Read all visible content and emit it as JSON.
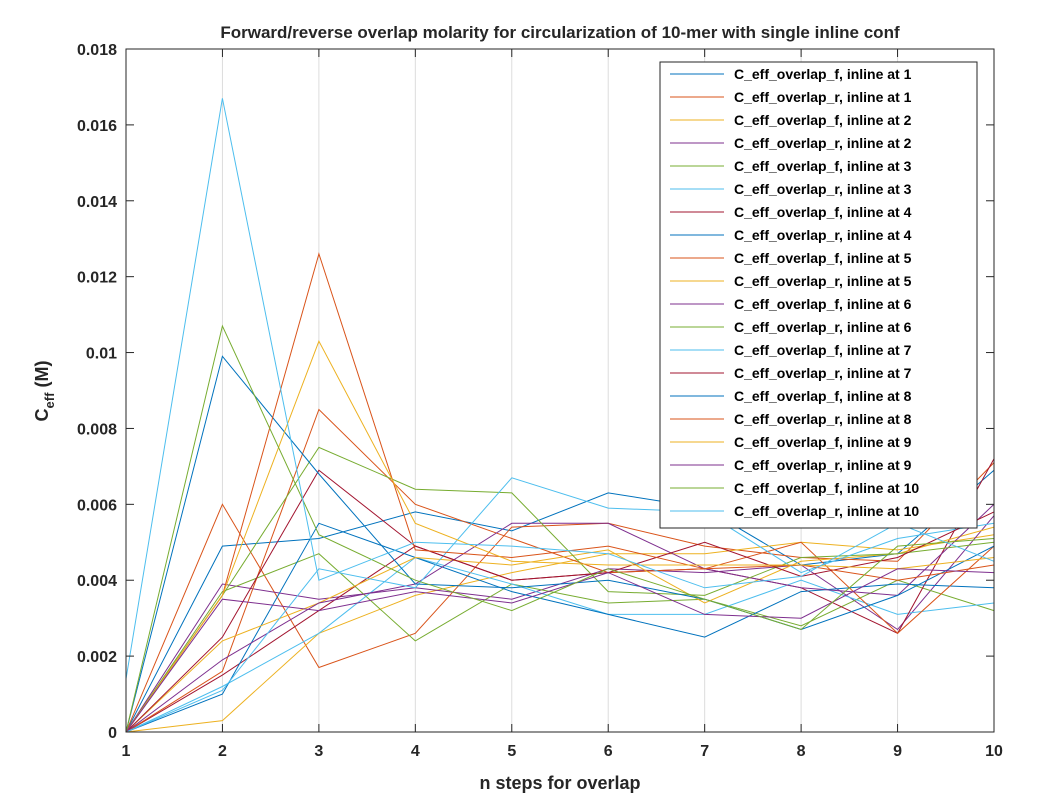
{
  "chart_data": {
    "type": "line",
    "title": "Forward/reverse overlap molarity for circularization of 10-mer with single inline conf",
    "xlabel": "n steps for overlap",
    "ylabel_main": "C",
    "ylabel_sub": "eff",
    "ylabel_unit": " (M)",
    "xlim": [
      1,
      10
    ],
    "ylim": [
      0,
      0.018
    ],
    "xticks": [
      1,
      2,
      3,
      4,
      5,
      6,
      7,
      8,
      9,
      10
    ],
    "yticks": [
      0,
      0.002,
      0.004,
      0.006,
      0.008,
      0.01,
      0.012,
      0.014,
      0.016,
      0.018
    ],
    "ytick_labels": [
      "0",
      "0.002",
      "0.004",
      "0.006",
      "0.008",
      "0.01",
      "0.012",
      "0.014",
      "0.016",
      "0.018"
    ],
    "grid": "vertical",
    "legend_position": "top-right",
    "x": [
      1,
      2,
      3,
      4,
      5,
      6,
      7,
      8,
      9,
      10
    ],
    "series": [
      {
        "name": "C_eff_overlap_f, inline at 1",
        "color": "#0072BD",
        "values": [
          0.0,
          0.0049,
          0.0051,
          0.0058,
          0.0053,
          0.0063,
          0.0059,
          0.0044,
          0.0047,
          0.0069
        ]
      },
      {
        "name": "C_eff_overlap_r, inline at 1",
        "color": "#D95319",
        "values": [
          0.0,
          0.006,
          0.0017,
          0.0026,
          0.0054,
          0.0055,
          0.0049,
          0.0046,
          0.0045,
          0.0071
        ]
      },
      {
        "name": "C_eff_overlap_f, inline at 2",
        "color": "#EDB120",
        "values": [
          0.0,
          0.0003,
          0.0026,
          0.0036,
          0.0042,
          0.0047,
          0.0047,
          0.005,
          0.0048,
          0.0052
        ]
      },
      {
        "name": "C_eff_overlap_r, inline at 2",
        "color": "#7E2F8E",
        "values": [
          0.0,
          0.0039,
          0.0035,
          0.0038,
          0.0035,
          0.0043,
          0.0042,
          0.0044,
          0.0027,
          0.0057
        ]
      },
      {
        "name": "C_eff_overlap_f, inline at 3",
        "color": "#77AC30",
        "values": [
          0.0,
          0.0037,
          0.0047,
          0.0024,
          0.0039,
          0.0034,
          0.0035,
          0.0028,
          0.004,
          0.0032
        ]
      },
      {
        "name": "C_eff_overlap_r, inline at 3",
        "color": "#4DBEEE",
        "values": [
          0.0,
          0.0012,
          0.0026,
          0.0046,
          0.0039,
          0.0031,
          0.0031,
          0.004,
          0.0031,
          0.0034
        ]
      },
      {
        "name": "C_eff_overlap_f, inline at 4",
        "color": "#A2142F",
        "values": [
          0.0,
          0.0015,
          0.0032,
          0.0049,
          0.004,
          0.0042,
          0.0043,
          0.0038,
          0.0026,
          0.0072
        ]
      },
      {
        "name": "C_eff_overlap_r, inline at 4",
        "color": "#0072BD",
        "values": [
          0.0,
          0.001,
          0.0055,
          0.0046,
          0.0037,
          0.0031,
          0.0025,
          0.0037,
          0.0039,
          0.0038
        ]
      },
      {
        "name": "C_eff_overlap_f, inline at 5",
        "color": "#D95319",
        "values": [
          0.0,
          0.0016,
          0.0085,
          0.006,
          0.0051,
          0.0042,
          0.0043,
          0.005,
          0.0026,
          0.0049
        ]
      },
      {
        "name": "C_eff_overlap_r, inline at 5",
        "color": "#EDB120",
        "values": [
          0.0,
          0.0024,
          0.0034,
          0.0046,
          0.0044,
          0.0048,
          0.0034,
          0.0045,
          0.0047,
          0.0054
        ]
      },
      {
        "name": "C_eff_overlap_f, inline at 6",
        "color": "#7E2F8E",
        "values": [
          0.0,
          0.0019,
          0.0034,
          0.0039,
          0.0055,
          0.0055,
          0.0043,
          0.0038,
          0.0036,
          0.006
        ]
      },
      {
        "name": "C_eff_overlap_r, inline at 6",
        "color": "#77AC30",
        "values": [
          0.0,
          0.0036,
          0.0075,
          0.0064,
          0.0063,
          0.0037,
          0.0036,
          0.0046,
          0.0047,
          0.005
        ]
      },
      {
        "name": "C_eff_overlap_f, inline at 7",
        "color": "#4DBEEE",
        "values": [
          0.0,
          0.0011,
          0.0043,
          0.0038,
          0.0067,
          0.0059,
          0.0058,
          0.0042,
          0.0051,
          0.0055
        ]
      },
      {
        "name": "C_eff_overlap_r, inline at 7",
        "color": "#A2142F",
        "values": [
          0.0,
          0.0025,
          0.0069,
          0.0049,
          0.004,
          0.0042,
          0.005,
          0.0041,
          0.0046,
          0.0058
        ]
      },
      {
        "name": "C_eff_overlap_f, inline at 8",
        "color": "#0072BD",
        "values": [
          0.0,
          0.0099,
          0.0068,
          0.0039,
          0.0038,
          0.004,
          0.0035,
          0.0027,
          0.0036,
          0.0049
        ]
      },
      {
        "name": "C_eff_overlap_r, inline at 8",
        "color": "#D95319",
        "values": [
          0.0,
          0.0036,
          0.0126,
          0.0048,
          0.0046,
          0.0049,
          0.0043,
          0.0044,
          0.004,
          0.0044
        ]
      },
      {
        "name": "C_eff_overlap_f, inline at 9",
        "color": "#EDB120",
        "values": [
          0.0,
          0.0036,
          0.0103,
          0.0055,
          0.0045,
          0.0044,
          0.0044,
          0.0044,
          0.0043,
          0.0046
        ]
      },
      {
        "name": "C_eff_overlap_r, inline at 9",
        "color": "#7E2F8E",
        "values": [
          0.0,
          0.0035,
          0.0032,
          0.0037,
          0.0034,
          0.0042,
          0.0031,
          0.003,
          0.0043,
          0.0042
        ]
      },
      {
        "name": "C_eff_overlap_f, inline at 10",
        "color": "#77AC30",
        "values": [
          0.0,
          0.0107,
          0.0052,
          0.004,
          0.0032,
          0.0043,
          0.0035,
          0.0027,
          0.0049,
          0.0051
        ]
      },
      {
        "name": "C_eff_overlap_r, inline at 10",
        "color": "#4DBEEE",
        "values": [
          0.0014,
          0.0167,
          0.004,
          0.005,
          0.0049,
          0.0047,
          0.0038,
          0.0041,
          0.0055,
          0.0045
        ]
      }
    ]
  }
}
